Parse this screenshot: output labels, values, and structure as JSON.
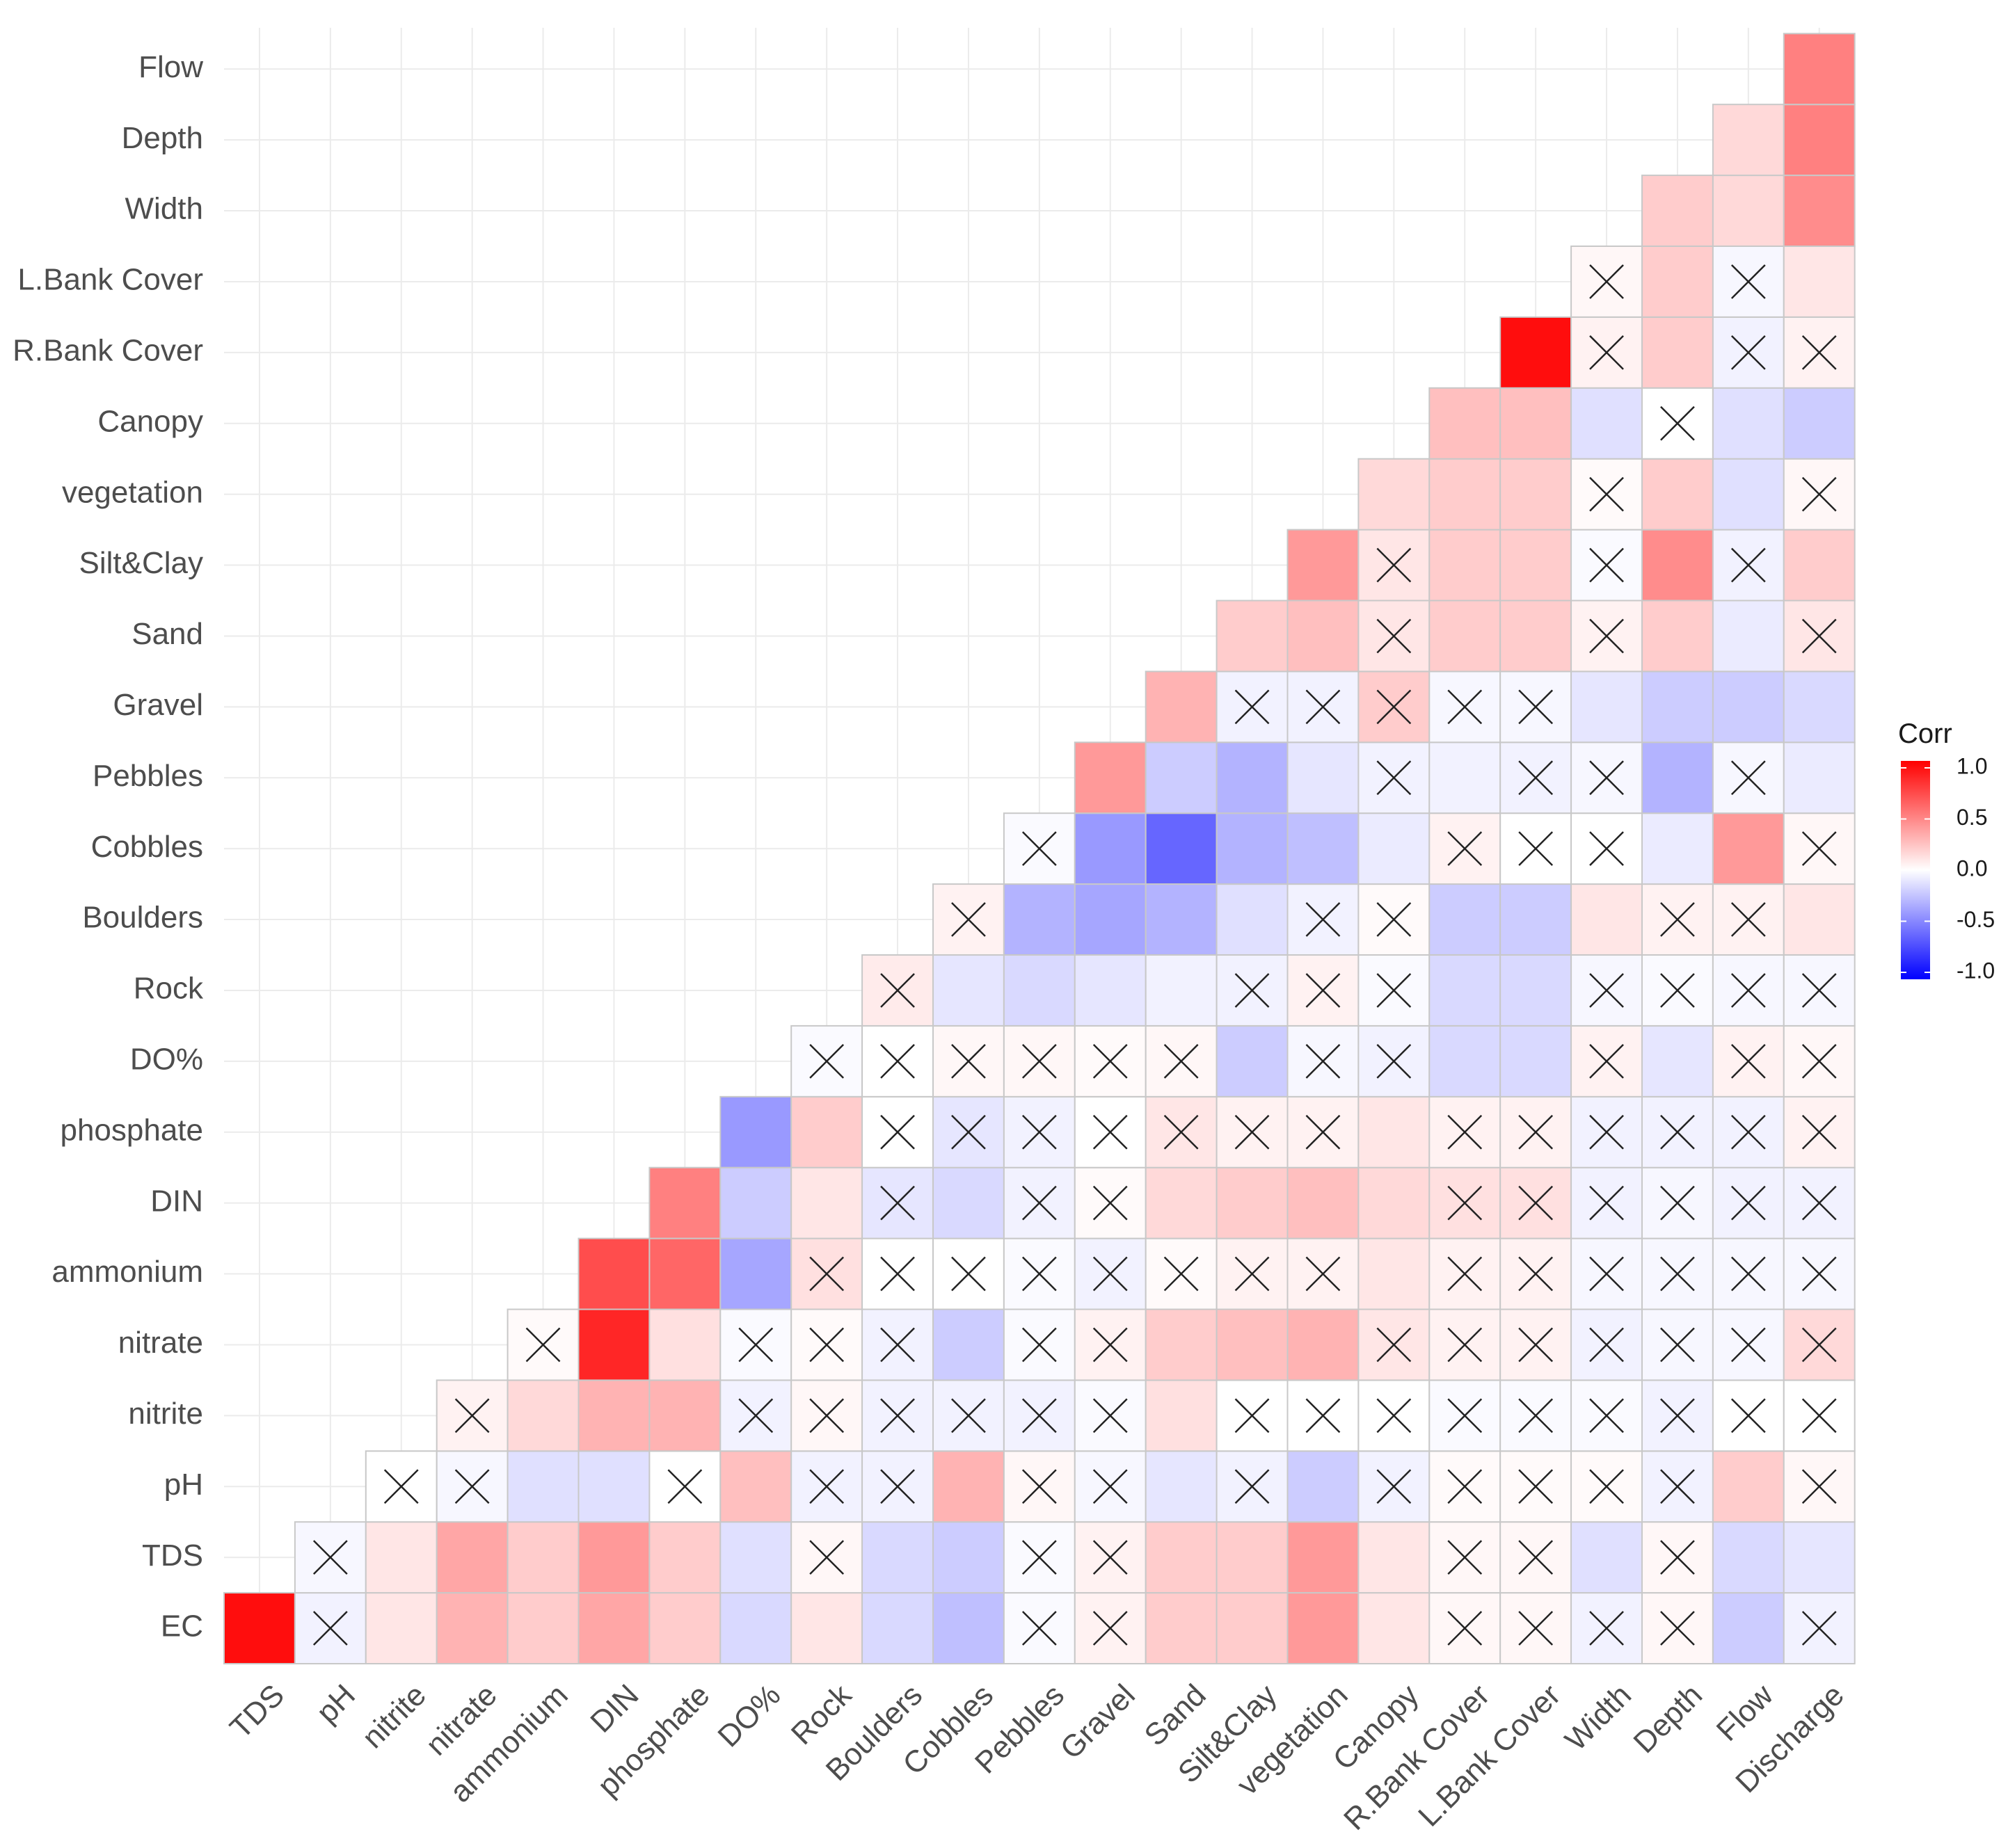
{
  "chart_data": {
    "type": "heatmap",
    "subtype": "correlation-lower-triangle",
    "legend": {
      "title": "Corr",
      "ticks": [
        "1.0",
        "0.5",
        "0.0",
        "-0.5",
        "-1.0"
      ],
      "tick_values": [
        1.0,
        0.5,
        0.0,
        -0.5,
        -1.0
      ],
      "range": [
        -1.0,
        1.0
      ],
      "placement": "right",
      "colors": {
        "low": "#0000ff",
        "mid": "#ffffff",
        "high": "#ff0000"
      }
    },
    "xlabels": [
      "TDS",
      "pH",
      "nitrite",
      "nitrate",
      "ammonium",
      "DIN",
      "phosphate",
      "DO%",
      "Rock",
      "Boulders",
      "Cobbles",
      "Pebbles",
      "Gravel",
      "Sand",
      "Silt&Clay",
      "vegetation",
      "Canopy",
      "R.Bank Cover",
      "L.Bank Cover",
      "Width",
      "Depth",
      "Flow",
      "Discharge"
    ],
    "ylabels": [
      "EC",
      "TDS",
      "pH",
      "nitrite",
      "nitrate",
      "ammonium",
      "DIN",
      "phosphate",
      "DO%",
      "Rock",
      "Boulders",
      "Cobbles",
      "Pebbles",
      "Gravel",
      "Sand",
      "Silt&Clay",
      "vegetation",
      "Canopy",
      "R.Bank Cover",
      "L.Bank Cover",
      "Width",
      "Depth",
      "Flow"
    ],
    "matrix": [
      [
        0.95,
        -0.05,
        0.1,
        0.3,
        0.2,
        0.35,
        0.2,
        -0.15,
        0.1,
        -0.15,
        -0.25,
        -0.02,
        0.05,
        0.2,
        0.2,
        0.4,
        0.1,
        0.03,
        0.03,
        -0.05,
        0.03,
        -0.2,
        -0.05
      ],
      [
        null,
        -0.03,
        0.1,
        0.35,
        0.2,
        0.4,
        0.2,
        -0.12,
        0.03,
        -0.15,
        -0.2,
        -0.02,
        0.05,
        0.2,
        0.2,
        0.4,
        0.1,
        0.03,
        0.03,
        -0.12,
        0.03,
        -0.15,
        -0.1
      ],
      [
        null,
        null,
        0.0,
        -0.03,
        -0.12,
        -0.12,
        0.0,
        0.25,
        -0.05,
        -0.05,
        0.3,
        0.03,
        -0.03,
        -0.1,
        -0.05,
        -0.2,
        -0.05,
        0.02,
        0.02,
        0.02,
        -0.05,
        0.2,
        0.03
      ],
      [
        null,
        null,
        null,
        0.05,
        0.15,
        0.3,
        0.3,
        -0.05,
        0.03,
        -0.05,
        -0.05,
        -0.05,
        -0.02,
        0.12,
        0.0,
        0.0,
        0.0,
        -0.02,
        -0.02,
        -0.02,
        -0.05,
        0.0,
        0.0
      ],
      [
        null,
        null,
        null,
        null,
        0.02,
        0.85,
        0.12,
        -0.02,
        0.02,
        -0.05,
        -0.2,
        -0.02,
        0.05,
        0.2,
        0.25,
        0.3,
        0.1,
        0.05,
        0.05,
        -0.05,
        -0.03,
        -0.03,
        0.15
      ],
      [
        null,
        null,
        null,
        null,
        null,
        0.7,
        0.6,
        -0.35,
        0.12,
        0.0,
        0.0,
        -0.02,
        -0.05,
        0.02,
        0.05,
        0.05,
        0.1,
        0.05,
        0.05,
        -0.03,
        -0.03,
        -0.03,
        -0.03
      ],
      [
        null,
        null,
        null,
        null,
        null,
        null,
        0.5,
        -0.2,
        0.1,
        -0.1,
        -0.15,
        -0.05,
        0.02,
        0.15,
        0.2,
        0.25,
        0.15,
        0.12,
        0.12,
        -0.05,
        -0.03,
        -0.05,
        -0.05
      ],
      [
        null,
        null,
        null,
        null,
        null,
        null,
        null,
        -0.4,
        0.2,
        0.0,
        -0.1,
        -0.05,
        0.0,
        0.1,
        0.05,
        0.05,
        0.1,
        0.05,
        0.05,
        -0.05,
        -0.05,
        -0.05,
        0.05
      ],
      [
        null,
        null,
        null,
        null,
        null,
        null,
        null,
        null,
        -0.02,
        0.0,
        0.03,
        0.03,
        0.02,
        0.03,
        -0.2,
        -0.03,
        -0.05,
        -0.15,
        -0.15,
        0.05,
        -0.1,
        0.05,
        0.03
      ],
      [
        null,
        null,
        null,
        null,
        null,
        null,
        null,
        null,
        null,
        0.08,
        -0.1,
        -0.15,
        -0.1,
        -0.05,
        -0.05,
        0.05,
        -0.02,
        -0.15,
        -0.15,
        -0.03,
        -0.02,
        -0.03,
        -0.03
      ],
      [
        null,
        null,
        null,
        null,
        null,
        null,
        null,
        null,
        null,
        null,
        0.05,
        -0.3,
        -0.35,
        -0.3,
        -0.12,
        -0.05,
        0.02,
        -0.2,
        -0.2,
        0.1,
        0.05,
        0.05,
        0.1
      ],
      [
        null,
        null,
        null,
        null,
        null,
        null,
        null,
        null,
        null,
        null,
        null,
        -0.02,
        -0.4,
        -0.6,
        -0.3,
        -0.25,
        -0.08,
        0.05,
        0.0,
        0.0,
        -0.08,
        0.4,
        0.03
      ],
      [
        null,
        null,
        null,
        null,
        null,
        null,
        null,
        null,
        null,
        null,
        null,
        null,
        0.4,
        -0.2,
        -0.3,
        -0.1,
        -0.05,
        -0.05,
        -0.05,
        -0.03,
        -0.3,
        -0.03,
        -0.08
      ],
      [
        null,
        null,
        null,
        null,
        null,
        null,
        null,
        null,
        null,
        null,
        null,
        null,
        null,
        0.3,
        -0.05,
        -0.05,
        0.2,
        -0.03,
        -0.03,
        -0.1,
        -0.2,
        -0.2,
        -0.15
      ],
      [
        null,
        null,
        null,
        null,
        null,
        null,
        null,
        null,
        null,
        null,
        null,
        null,
        null,
        null,
        0.2,
        0.25,
        0.1,
        0.2,
        0.2,
        0.05,
        0.2,
        -0.08,
        0.1
      ],
      [
        null,
        null,
        null,
        null,
        null,
        null,
        null,
        null,
        null,
        null,
        null,
        null,
        null,
        null,
        null,
        0.4,
        0.1,
        0.2,
        0.2,
        -0.02,
        0.45,
        -0.05,
        0.2
      ],
      [
        null,
        null,
        null,
        null,
        null,
        null,
        null,
        null,
        null,
        null,
        null,
        null,
        null,
        null,
        null,
        null,
        0.15,
        0.2,
        0.2,
        0.02,
        0.2,
        -0.12,
        0.03
      ],
      [
        null,
        null,
        null,
        null,
        null,
        null,
        null,
        null,
        null,
        null,
        null,
        null,
        null,
        null,
        null,
        null,
        null,
        0.25,
        0.25,
        -0.12,
        0.0,
        -0.12,
        -0.2
      ],
      [
        null,
        null,
        null,
        null,
        null,
        null,
        null,
        null,
        null,
        null,
        null,
        null,
        null,
        null,
        null,
        null,
        null,
        null,
        0.95,
        0.05,
        0.2,
        -0.05,
        0.05
      ],
      [
        null,
        null,
        null,
        null,
        null,
        null,
        null,
        null,
        null,
        null,
        null,
        null,
        null,
        null,
        null,
        null,
        null,
        null,
        null,
        0.03,
        0.2,
        -0.03,
        0.1
      ],
      [
        null,
        null,
        null,
        null,
        null,
        null,
        null,
        null,
        null,
        null,
        null,
        null,
        null,
        null,
        null,
        null,
        null,
        null,
        null,
        null,
        0.2,
        0.15,
        0.45
      ],
      [
        null,
        null,
        null,
        null,
        null,
        null,
        null,
        null,
        null,
        null,
        null,
        null,
        null,
        null,
        null,
        null,
        null,
        null,
        null,
        null,
        null,
        0.15,
        0.5
      ],
      [
        null,
        null,
        null,
        null,
        null,
        null,
        null,
        null,
        null,
        null,
        null,
        null,
        null,
        null,
        null,
        null,
        null,
        null,
        null,
        null,
        null,
        null,
        0.5
      ]
    ],
    "insignificant": [
      [
        0,
        1
      ],
      [
        0,
        11
      ],
      [
        0,
        12
      ],
      [
        0,
        17
      ],
      [
        0,
        18
      ],
      [
        0,
        19
      ],
      [
        0,
        20
      ],
      [
        0,
        22
      ],
      [
        1,
        1
      ],
      [
        1,
        8
      ],
      [
        1,
        11
      ],
      [
        1,
        12
      ],
      [
        1,
        17
      ],
      [
        1,
        18
      ],
      [
        1,
        20
      ],
      [
        2,
        2
      ],
      [
        2,
        3
      ],
      [
        2,
        6
      ],
      [
        2,
        8
      ],
      [
        2,
        9
      ],
      [
        2,
        11
      ],
      [
        2,
        12
      ],
      [
        2,
        14
      ],
      [
        2,
        16
      ],
      [
        2,
        17
      ],
      [
        2,
        18
      ],
      [
        2,
        19
      ],
      [
        2,
        20
      ],
      [
        2,
        22
      ],
      [
        3,
        3
      ],
      [
        3,
        7
      ],
      [
        3,
        8
      ],
      [
        3,
        9
      ],
      [
        3,
        10
      ],
      [
        3,
        11
      ],
      [
        3,
        12
      ],
      [
        3,
        14
      ],
      [
        3,
        15
      ],
      [
        3,
        16
      ],
      [
        3,
        17
      ],
      [
        3,
        18
      ],
      [
        3,
        19
      ],
      [
        3,
        20
      ],
      [
        3,
        21
      ],
      [
        3,
        22
      ],
      [
        4,
        4
      ],
      [
        4,
        7
      ],
      [
        4,
        8
      ],
      [
        4,
        9
      ],
      [
        4,
        11
      ],
      [
        4,
        12
      ],
      [
        4,
        16
      ],
      [
        4,
        17
      ],
      [
        4,
        18
      ],
      [
        4,
        19
      ],
      [
        4,
        20
      ],
      [
        4,
        21
      ],
      [
        4,
        22
      ],
      [
        5,
        8
      ],
      [
        5,
        9
      ],
      [
        5,
        10
      ],
      [
        5,
        11
      ],
      [
        5,
        12
      ],
      [
        5,
        13
      ],
      [
        5,
        14
      ],
      [
        5,
        15
      ],
      [
        5,
        17
      ],
      [
        5,
        18
      ],
      [
        5,
        19
      ],
      [
        5,
        20
      ],
      [
        5,
        21
      ],
      [
        5,
        22
      ],
      [
        6,
        9
      ],
      [
        6,
        11
      ],
      [
        6,
        12
      ],
      [
        6,
        17
      ],
      [
        6,
        18
      ],
      [
        6,
        19
      ],
      [
        6,
        20
      ],
      [
        6,
        21
      ],
      [
        6,
        22
      ],
      [
        7,
        9
      ],
      [
        7,
        10
      ],
      [
        7,
        11
      ],
      [
        7,
        12
      ],
      [
        7,
        13
      ],
      [
        7,
        14
      ],
      [
        7,
        15
      ],
      [
        7,
        17
      ],
      [
        7,
        18
      ],
      [
        7,
        19
      ],
      [
        7,
        20
      ],
      [
        7,
        21
      ],
      [
        7,
        22
      ],
      [
        8,
        8
      ],
      [
        8,
        9
      ],
      [
        8,
        10
      ],
      [
        8,
        11
      ],
      [
        8,
        12
      ],
      [
        8,
        13
      ],
      [
        8,
        15
      ],
      [
        8,
        16
      ],
      [
        8,
        19
      ],
      [
        8,
        21
      ],
      [
        8,
        22
      ],
      [
        9,
        9
      ],
      [
        9,
        14
      ],
      [
        9,
        15
      ],
      [
        9,
        16
      ],
      [
        9,
        19
      ],
      [
        9,
        20
      ],
      [
        9,
        21
      ],
      [
        9,
        22
      ],
      [
        10,
        10
      ],
      [
        10,
        15
      ],
      [
        10,
        16
      ],
      [
        10,
        20
      ],
      [
        10,
        21
      ],
      [
        11,
        11
      ],
      [
        11,
        17
      ],
      [
        11,
        18
      ],
      [
        11,
        19
      ],
      [
        11,
        22
      ],
      [
        12,
        16
      ],
      [
        12,
        18
      ],
      [
        12,
        19
      ],
      [
        12,
        21
      ],
      [
        13,
        14
      ],
      [
        13,
        15
      ],
      [
        13,
        16
      ],
      [
        13,
        17
      ],
      [
        13,
        18
      ],
      [
        14,
        16
      ],
      [
        14,
        19
      ],
      [
        14,
        22
      ],
      [
        15,
        16
      ],
      [
        15,
        19
      ],
      [
        15,
        21
      ],
      [
        16,
        19
      ],
      [
        16,
        22
      ],
      [
        17,
        20
      ],
      [
        18,
        19
      ],
      [
        18,
        21
      ],
      [
        18,
        22
      ],
      [
        19,
        19
      ],
      [
        19,
        21
      ]
    ]
  }
}
